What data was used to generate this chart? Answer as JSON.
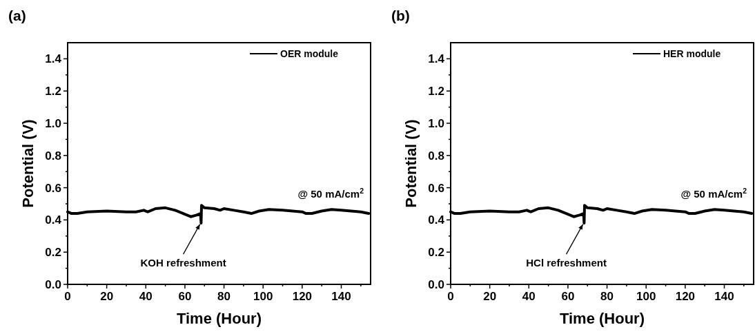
{
  "chart_data": [
    {
      "type": "line",
      "title": "(a)",
      "xlabel": "Time (Hour)",
      "ylabel": "Potential (V)",
      "xlim": [
        0,
        155
      ],
      "ylim": [
        0,
        1.5
      ],
      "xticks": [
        0,
        {
          "value": 10,
          "label": null
        },
        20,
        {
          "value": 30,
          "label": null
        },
        40,
        {
          "value": 50,
          "label": null
        },
        60,
        {
          "value": 70,
          "label": null
        },
        80,
        {
          "value": 90,
          "label": null
        },
        100,
        {
          "value": 110,
          "label": null
        },
        120,
        {
          "value": 130,
          "label": null
        },
        140,
        {
          "value": 150,
          "label": null
        }
      ],
      "yticks": [
        {
          "value": 0,
          "label": "0.0"
        },
        {
          "value": 0.1,
          "label": null
        },
        0.2,
        {
          "value": 0.3,
          "label": null
        },
        0.4,
        {
          "value": 0.5,
          "label": null
        },
        0.6,
        {
          "value": 0.7,
          "label": null
        },
        0.8,
        {
          "value": 0.9,
          "label": null
        },
        {
          "value": 1,
          "label": "1.0"
        },
        {
          "value": 1.1,
          "label": null
        },
        1.2,
        {
          "value": 1.3,
          "label": null
        },
        1.4
      ],
      "legend": "top right",
      "grid": false,
      "line_style": "solid",
      "annotations": [
        "@ 50 mA/cm$^{2}$",
        {
          "text": "KOH refreshment",
          "x": 68,
          "y": 0.38
        }
      ],
      "series": [
        {
          "name": "OER module",
          "color": "#000000",
          "x": [
            0,
            2,
            5,
            10,
            20,
            30,
            35,
            39,
            40,
            41,
            45,
            50,
            55,
            60,
            63,
            66,
            68,
            68.3,
            68.5,
            70,
            75,
            78,
            80,
            85,
            90,
            94,
            98,
            103,
            110,
            115,
            120,
            122,
            125,
            130,
            135,
            140,
            145,
            150,
            154
          ],
          "values": [
            0.45,
            0.44,
            0.44,
            0.45,
            0.455,
            0.45,
            0.45,
            0.46,
            0.455,
            0.45,
            0.47,
            0.475,
            0.46,
            0.435,
            0.42,
            0.43,
            0.44,
            0.38,
            0.49,
            0.475,
            0.47,
            0.46,
            0.47,
            0.46,
            0.45,
            0.44,
            0.455,
            0.465,
            0.46,
            0.455,
            0.45,
            0.44,
            0.44,
            0.455,
            0.465,
            0.46,
            0.455,
            0.45,
            0.44
          ]
        }
      ]
    },
    {
      "type": "line",
      "title": "(b)",
      "xlabel": "Time (Hour)",
      "ylabel": "Potential (V)",
      "xlim": [
        0,
        155
      ],
      "ylim": [
        0,
        1.5
      ],
      "xticks": [
        0,
        {
          "value": 10,
          "label": null
        },
        20,
        {
          "value": 30,
          "label": null
        },
        40,
        {
          "value": 50,
          "label": null
        },
        60,
        {
          "value": 70,
          "label": null
        },
        80,
        {
          "value": 90,
          "label": null
        },
        100,
        {
          "value": 110,
          "label": null
        },
        120,
        {
          "value": 130,
          "label": null
        },
        140,
        {
          "value": 150,
          "label": null
        }
      ],
      "yticks": [
        {
          "value": 0,
          "label": "0.0"
        },
        {
          "value": 0.1,
          "label": null
        },
        0.2,
        {
          "value": 0.3,
          "label": null
        },
        0.4,
        {
          "value": 0.5,
          "label": null
        },
        0.6,
        {
          "value": 0.7,
          "label": null
        },
        0.8,
        {
          "value": 0.9,
          "label": null
        },
        {
          "value": 1,
          "label": "1.0"
        },
        {
          "value": 1.1,
          "label": null
        },
        1.2,
        {
          "value": 1.3,
          "label": null
        },
        1.4
      ],
      "legend": "top right",
      "grid": false,
      "line_style": "solid",
      "annotations": [
        "@ 50 mA/cm$^{2}$",
        {
          "text": "HCl refreshment",
          "x": 68,
          "y": 0.38
        }
      ],
      "series": [
        {
          "name": "HER module",
          "color": "#000000",
          "x": [
            0,
            2,
            5,
            10,
            20,
            30,
            35,
            39,
            40,
            41,
            45,
            50,
            55,
            60,
            63,
            66,
            68,
            68.3,
            68.5,
            70,
            75,
            78,
            80,
            85,
            90,
            94,
            98,
            103,
            110,
            115,
            120,
            122,
            125,
            130,
            135,
            140,
            145,
            150,
            154
          ],
          "values": [
            0.45,
            0.44,
            0.44,
            0.45,
            0.455,
            0.45,
            0.45,
            0.46,
            0.455,
            0.45,
            0.47,
            0.475,
            0.46,
            0.435,
            0.42,
            0.43,
            0.44,
            0.38,
            0.49,
            0.475,
            0.47,
            0.46,
            0.47,
            0.46,
            0.45,
            0.44,
            0.455,
            0.465,
            0.46,
            0.455,
            0.45,
            0.44,
            0.44,
            0.455,
            0.465,
            0.46,
            0.455,
            0.45,
            0.44
          ]
        }
      ]
    }
  ]
}
